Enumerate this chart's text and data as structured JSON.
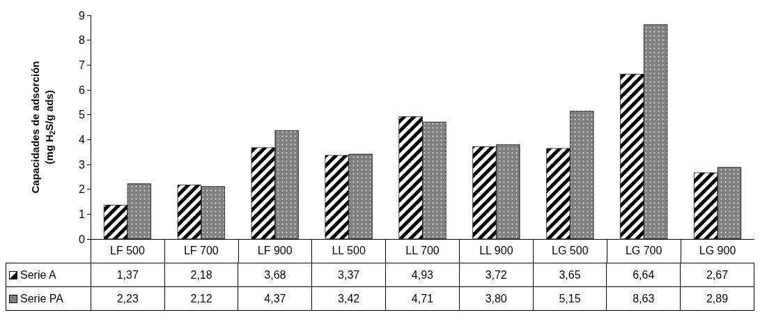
{
  "chart_data": {
    "type": "bar",
    "ylabel": "Capacidades de adsorción\n(mg H$_{2}$S/g ads)",
    "categories": [
      "LF 500",
      "LF 700",
      "LF 900",
      "LL 500",
      "LL 700",
      "LL 900",
      "LG 500",
      "LG 700",
      "LG 900"
    ],
    "series": [
      {
        "name": "Serie A",
        "color": "#000000",
        "values": [
          1.37,
          2.18,
          3.68,
          3.37,
          4.93,
          3.72,
          3.65,
          6.64,
          2.67
        ],
        "value_labels": [
          "1,37",
          "2,18",
          "3,68",
          "3,37",
          "4,93",
          "3,72",
          "3,65",
          "6,64",
          "2,67"
        ]
      },
      {
        "name": "Serie PA",
        "color": "#808080",
        "values": [
          2.23,
          2.12,
          4.37,
          3.42,
          4.71,
          3.8,
          5.15,
          8.63,
          2.89
        ],
        "value_labels": [
          "2,23",
          "2,12",
          "4,37",
          "3,42",
          "4,71",
          "3,80",
          "5,15",
          "8,63",
          "2,89"
        ]
      }
    ],
    "ylim": [
      0,
      9
    ],
    "yticks": [
      0,
      1,
      2,
      3,
      4,
      5,
      6,
      7,
      8,
      9
    ],
    "grid": false,
    "legend": "bottom"
  }
}
